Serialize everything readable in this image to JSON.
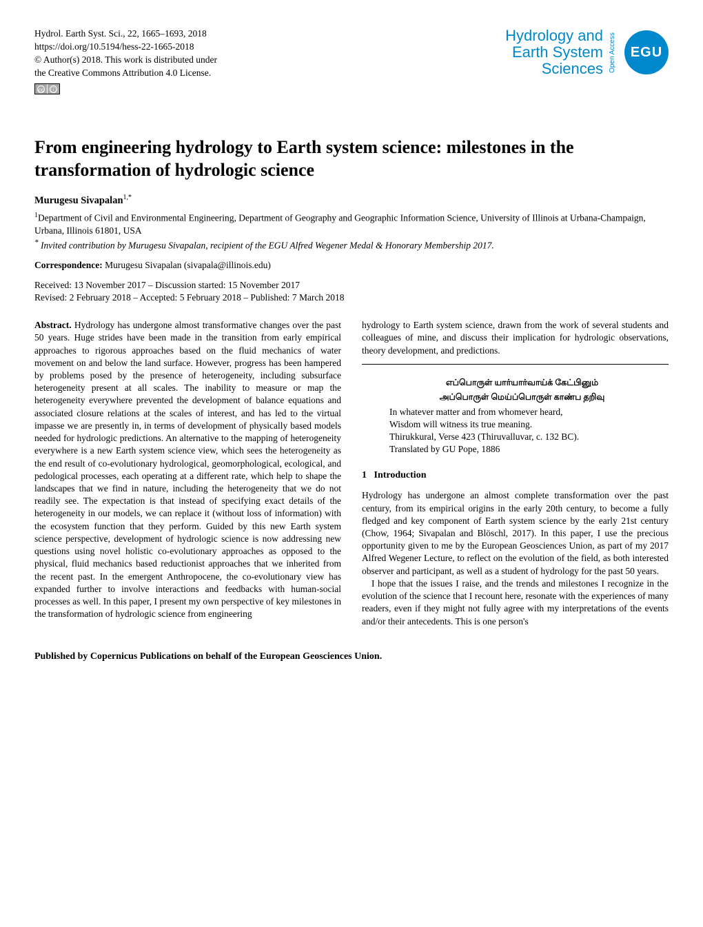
{
  "header": {
    "journal_citation": "Hydrol. Earth Syst. Sci., 22, 1665–1693, 2018",
    "doi_url": "https://doi.org/10.5194/hess-22-1665-2018",
    "copyright_line": "© Author(s) 2018. This work is distributed under",
    "license_line": "the Creative Commons Attribution 4.0 License.",
    "open_access_label": "Open Access",
    "publisher": {
      "line1": "Hydrology and",
      "line2": "Earth System",
      "line3": "Sciences",
      "badge_text": "EGU",
      "text_color": "#0088cc",
      "badge_bg": "#0088cc",
      "badge_fg": "#ffffff"
    }
  },
  "title": "From engineering hydrology to Earth system science: milestones in the transformation of hydrologic science",
  "author": {
    "name": "Murugesu Sivapalan",
    "superscript": "1,*"
  },
  "affiliation": {
    "superscript": "1",
    "text": "Department of Civil and Environmental Engineering, Department of Geography and Geographic Information Science, University of Illinois at Urbana-Champaign, Urbana, Illinois 61801, USA"
  },
  "invited": {
    "superscript": "*",
    "text": " Invited contribution by Murugesu Sivapalan, recipient of the EGU Alfred Wegener Medal & Honorary Membership 2017."
  },
  "correspondence": {
    "label": "Correspondence:",
    "text": " Murugesu Sivapalan (sivapala@illinois.edu)"
  },
  "dates": {
    "line1": "Received: 13 November 2017 – Discussion started: 15 November 2017",
    "line2": "Revised: 2 February 2018 – Accepted: 5 February 2018 – Published: 7 March 2018"
  },
  "abstract": {
    "label": "Abstract.",
    "body_left": " Hydrology has undergone almost transformative changes over the past 50 years. Huge strides have been made in the transition from early empirical approaches to rigorous approaches based on the fluid mechanics of water movement on and below the land surface. However, progress has been hampered by problems posed by the presence of heterogeneity, including subsurface heterogeneity present at all scales. The inability to measure or map the heterogeneity everywhere prevented the development of balance equations and associated closure relations at the scales of interest, and has led to the virtual impasse we are presently in, in terms of development of physically based models needed for hydrologic predictions. An alternative to the mapping of heterogeneity everywhere is a new Earth system science view, which sees the heterogeneity as the end result of co-evolutionary hydrological, geomorphological, ecological, and pedological processes, each operating at a different rate, which help to shape the landscapes that we find in nature, including the heterogeneity that we do not readily see. The expectation is that instead of specifying exact details of the heterogeneity in our models, we can replace it (without loss of information) with the ecosystem function that they perform. Guided by this new Earth system science perspective, development of hydrologic science is now addressing new questions using novel holistic co-evolutionary approaches as opposed to the physical, fluid mechanics based reductionist approaches that we inherited from the recent past. In the emergent Anthropocene, the co-evolutionary view has expanded further to involve interactions and feedbacks with human-social processes as well. In this paper, I present my own perspective of key milestones in the transformation of hydrologic science from engineering",
    "body_right_continuation": "hydrology to Earth system science, drawn from the work of several students and colleagues of mine, and discuss their implication for hydrologic observations, theory development, and predictions."
  },
  "epigraph": {
    "tamil_line1": "எப்பொருள் யார்யார்வாய்க் கேட்பினும்",
    "tamil_line2": "அப்பொருள் மெய்ப்பொருள் காண்ப தறிவு",
    "english_line1": "In whatever matter and from whomever heard,",
    "english_line2": "Wisdom will witness its true meaning.",
    "source_line": "Thirukkural, Verse 423 (Thiruvalluvar, c. 132 BC).",
    "translator_line": "Translated by GU Pope, 1886"
  },
  "section1": {
    "number": "1",
    "title": "Introduction",
    "para1": "Hydrology has undergone an almost complete transformation over the past century, from its empirical origins in the early 20th century, to become a fully fledged and key component of Earth system science by the early 21st century (Chow, 1964; Sivapalan and Blöschl, 2017). In this paper, I use the precious opportunity given to me by the European Geosciences Union, as part of my 2017 Alfred Wegener Lecture, to reflect on the evolution of the field, as both interested observer and participant, as well as a student of hydrology for the past 50 years.",
    "para2": "I hope that the issues I raise, and the trends and milestones I recognize in the evolution of the science that I recount here, resonate with the experiences of many readers, even if they might not fully agree with my interpretations of the events and/or their antecedents. This is one person's"
  },
  "footer": {
    "text": "Published by Copernicus Publications on behalf of the European Geosciences Union."
  },
  "colors": {
    "text": "#000000",
    "background": "#ffffff",
    "brand": "#0088cc"
  },
  "typography": {
    "body_fontsize_pt": 10,
    "title_fontsize_pt": 19,
    "font_family": "Times New Roman"
  }
}
